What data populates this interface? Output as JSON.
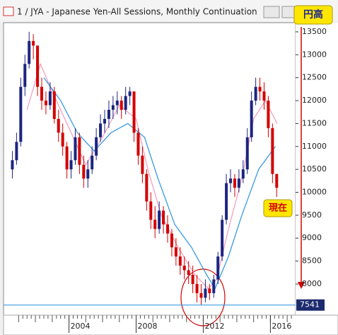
{
  "window_title": "1 / JYA - Japanese Yen-All Sessions, Monthly Continuation",
  "chart_data": {
    "type": "candlestick",
    "x": [
      2000.625,
      2000.875,
      2001.125,
      2001.375,
      2001.625,
      2001.875,
      2002.125,
      2002.375,
      2002.625,
      2002.875,
      2003.125,
      2003.375,
      2003.625,
      2003.875,
      2004.125,
      2004.375,
      2004.625,
      2004.875,
      2005.125,
      2005.375,
      2005.625,
      2005.875,
      2006.125,
      2006.375,
      2006.625,
      2006.875,
      2007.125,
      2007.375,
      2007.625,
      2007.875,
      2008.125,
      2008.375,
      2008.625,
      2008.875,
      2009.125,
      2009.375,
      2009.625,
      2009.875,
      2010.125,
      2010.375,
      2010.625,
      2010.875,
      2011.125,
      2011.375,
      2011.625,
      2011.875,
      2012.125,
      2012.375,
      2012.625,
      2012.875,
      2013.125,
      2013.375,
      2013.625,
      2013.875,
      2014.125,
      2014.375,
      2014.625,
      2014.875,
      2015.125,
      2015.375,
      2015.625,
      2015.875,
      2016.125,
      2016.375
    ],
    "open": [
      10500,
      10700,
      11100,
      12300,
      12800,
      13300,
      13200,
      12300,
      12000,
      11900,
      12200,
      11600,
      11300,
      11000,
      10500,
      10700,
      11200,
      10600,
      10300,
      10500,
      10800,
      11200,
      11500,
      11600,
      11800,
      11900,
      12000,
      11800,
      12100,
      12200,
      11300,
      10800,
      10400,
      9800,
      9400,
      9200,
      9600,
      9300,
      9100,
      8800,
      8600,
      8400,
      8300,
      8200,
      8000,
      7800,
      7700,
      7900,
      7800,
      8100,
      8600,
      9400,
      10200,
      10300,
      10100,
      10300,
      10500,
      11200,
      12000,
      12300,
      12200,
      12000,
      11400,
      10400
    ],
    "high": [
      10900,
      11300,
      12500,
      13000,
      13500,
      13450,
      13200,
      12500,
      12200,
      12400,
      12300,
      11800,
      11500,
      11100,
      10900,
      11400,
      11300,
      10800,
      10700,
      11000,
      11400,
      11700,
      11800,
      12000,
      12100,
      12200,
      12100,
      12300,
      12300,
      12200,
      11400,
      11000,
      10500,
      10000,
      9700,
      9800,
      9700,
      9500,
      9200,
      9000,
      8800,
      8600,
      8500,
      8400,
      8200,
      8000,
      8100,
      8000,
      8200,
      8700,
      9500,
      10400,
      10500,
      10400,
      10500,
      10700,
      11400,
      12200,
      12500,
      12500,
      12400,
      12100,
      11500,
      10400
    ],
    "low": [
      10300,
      10600,
      11000,
      12100,
      12700,
      12900,
      12100,
      11800,
      11700,
      11800,
      11500,
      11100,
      10800,
      10300,
      10300,
      10600,
      10400,
      10100,
      10100,
      10400,
      10700,
      11100,
      11300,
      11400,
      11600,
      11700,
      11600,
      11700,
      11900,
      11100,
      10600,
      10200,
      9600,
      9200,
      9000,
      9100,
      9100,
      8900,
      8600,
      8400,
      8200,
      8100,
      8000,
      7800,
      7600,
      7550,
      7600,
      7650,
      7700,
      8000,
      8500,
      9300,
      10000,
      9900,
      10000,
      10200,
      10400,
      11100,
      11900,
      12000,
      11800,
      11200,
      10200,
      9900
    ],
    "close": [
      10700,
      11100,
      12300,
      12800,
      13300,
      13200,
      12300,
      12000,
      11900,
      12200,
      11600,
      11300,
      11000,
      10500,
      10700,
      11200,
      10600,
      10300,
      10500,
      10800,
      11200,
      11500,
      11600,
      11800,
      11900,
      12000,
      11800,
      12100,
      12200,
      11300,
      10800,
      10400,
      9800,
      9400,
      9200,
      9600,
      9300,
      9100,
      8800,
      8600,
      8400,
      8300,
      8200,
      8000,
      7800,
      7700,
      7900,
      7800,
      8100,
      8600,
      9400,
      10200,
      10300,
      10100,
      10300,
      10500,
      11200,
      12000,
      12300,
      12200,
      12000,
      11400,
      10400,
      10100
    ],
    "up_color": "#1c2580",
    "down_color": "#d40000",
    "lines": [
      {
        "color": "#f4a0c0",
        "x": [
          2001.5,
          2002.3,
          2003,
          2004,
          2005,
          2006,
          2007,
          2008,
          2008.7,
          2009.5,
          2010.5,
          2011.5,
          2012.3,
          2012.8,
          2013.5,
          2014.3,
          2015,
          2015.7,
          2016.4
        ],
        "values": [
          11800,
          12800,
          12200,
          11400,
          10600,
          11200,
          11900,
          11600,
          10500,
          9500,
          8800,
          8200,
          7900,
          8100,
          9200,
          10300,
          11600,
          12000,
          11500
        ]
      },
      {
        "color": "#3a9be0",
        "x": [
          2002.5,
          2003.5,
          2004.5,
          2005.5,
          2006.5,
          2007.5,
          2008.5,
          2009.3,
          2010.3,
          2011.3,
          2012.2,
          2012.7,
          2013.5,
          2014.3,
          2015.3,
          2016.3
        ],
        "values": [
          12500,
          12000,
          11300,
          10900,
          11300,
          11500,
          11200,
          10300,
          9300,
          8800,
          8200,
          7900,
          8600,
          9500,
          10500,
          11000
        ]
      }
    ],
    "last_price": 7541,
    "xlim": [
      2000.1,
      2017.5
    ],
    "xticks": [
      2004,
      2008,
      2012,
      2016
    ],
    "ylim": [
      7320,
      13700
    ],
    "yticks": [
      8000,
      8500,
      9000,
      9500,
      10000,
      10500,
      11000,
      11500,
      12000,
      12500,
      13000,
      13500
    ],
    "annotations": [
      "円高",
      "現在"
    ]
  }
}
